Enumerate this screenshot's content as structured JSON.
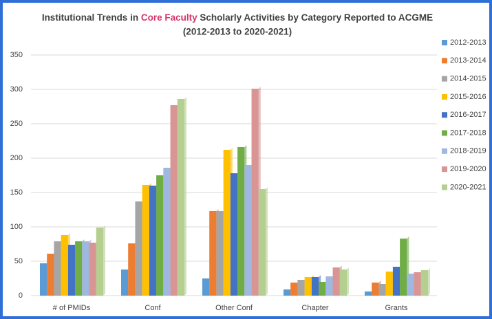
{
  "chart_data": {
    "type": "bar",
    "title_parts": [
      {
        "text": "Institutional Trends in ",
        "color": "#404040"
      },
      {
        "text": "Core Faculty",
        "color": "#d6336c"
      },
      {
        "text": " Scholarly Activities by Category Reported to ACGME",
        "color": "#404040"
      }
    ],
    "subtitle": "(2012-2013 to 2020-2021)",
    "categories": [
      "# of PMIDs",
      "Conf",
      "Other Conf",
      "Chapter",
      "Grants"
    ],
    "series": [
      {
        "name": "2012-2013",
        "color": "#5b9bd5",
        "values": [
          47,
          38,
          25,
          9,
          6
        ]
      },
      {
        "name": "2013-2014",
        "color": "#ed7d31",
        "values": [
          61,
          76,
          123,
          19,
          19
        ]
      },
      {
        "name": "2014-2015",
        "color": "#a5a5a5",
        "values": [
          79,
          137,
          123,
          23,
          17
        ]
      },
      {
        "name": "2015-2016",
        "color": "#ffc000",
        "values": [
          88,
          161,
          212,
          27,
          35
        ]
      },
      {
        "name": "2016-2017",
        "color": "#4472c4",
        "values": [
          74,
          160,
          178,
          27,
          42
        ]
      },
      {
        "name": "2017-2018",
        "color": "#70ad47",
        "values": [
          79,
          175,
          216,
          20,
          83
        ]
      },
      {
        "name": "2018-2019",
        "color": "#9fb8e0",
        "values": [
          79,
          186,
          190,
          28,
          32
        ]
      },
      {
        "name": "2019-2020",
        "color": "#d99594",
        "values": [
          77,
          277,
          301,
          41,
          34
        ]
      },
      {
        "name": "2020-2021",
        "color": "#b4cf8f",
        "values": [
          99,
          286,
          155,
          38,
          37
        ]
      }
    ],
    "ylim": [
      0,
      350
    ],
    "yticks": [
      0,
      50,
      100,
      150,
      200,
      250,
      300,
      350
    ],
    "grid": true,
    "legend": "right"
  }
}
